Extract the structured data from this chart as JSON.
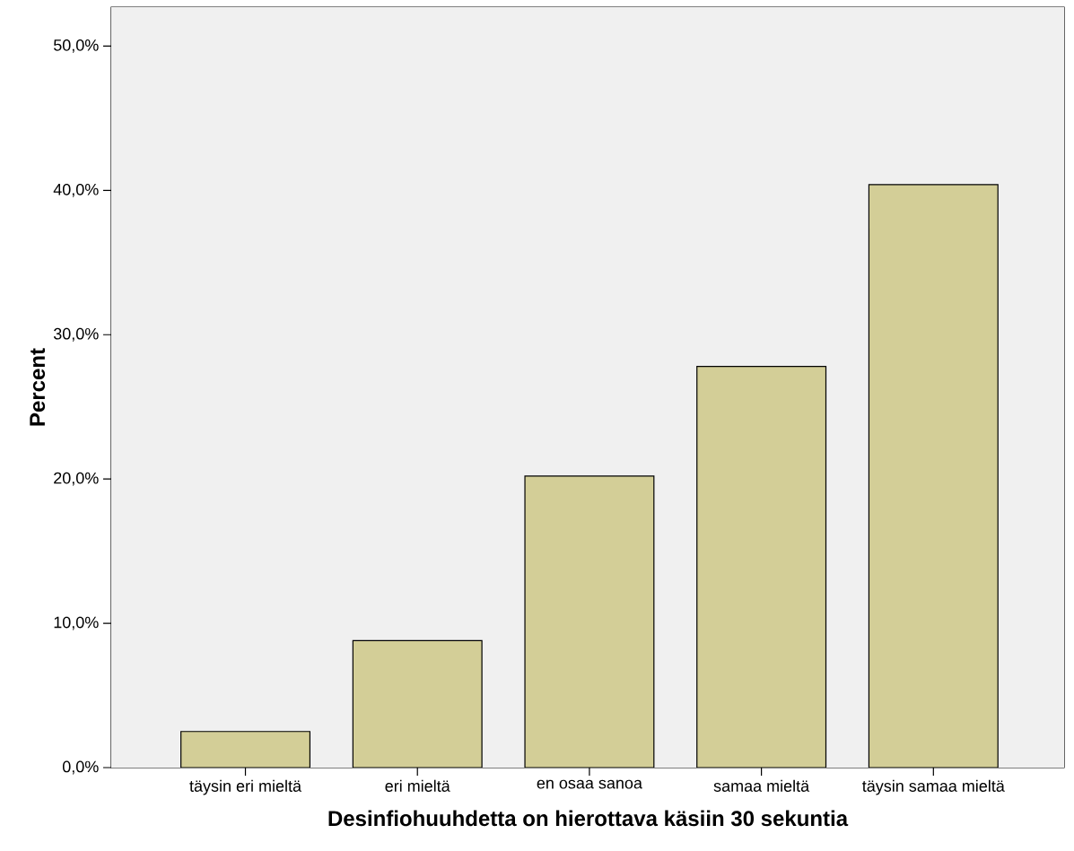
{
  "chart_data": {
    "type": "bar",
    "xlabel": "Desinfiohuuhdetta on hierottava käsiin 30 sekuntia",
    "ylabel": "Percent",
    "categories": [
      "täysin eri mieltä",
      "eri mieltä",
      "en osaa sanoa",
      "samaa mieltä",
      "täysin samaa mieltä"
    ],
    "values": [
      2.5,
      8.8,
      20.2,
      27.8,
      40.4
    ],
    "color": "#d3ce97",
    "ylim": [
      0,
      52.7
    ],
    "yticks": [
      {
        "value": 0,
        "label": "0,0%"
      },
      {
        "value": 10,
        "label": "10,0%"
      },
      {
        "value": 20,
        "label": "20,0%"
      },
      {
        "value": 30,
        "label": "30,0%"
      },
      {
        "value": 40,
        "label": "40,0%"
      },
      {
        "value": 50,
        "label": "50,0%"
      }
    ]
  }
}
